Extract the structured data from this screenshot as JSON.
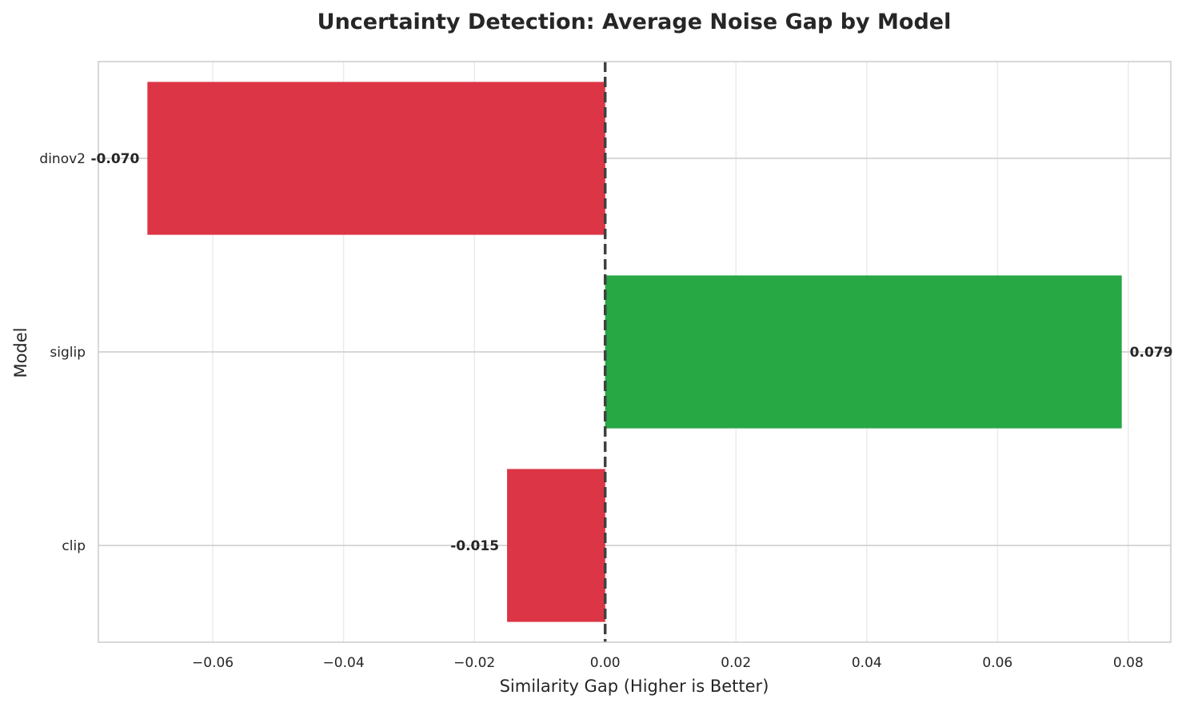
{
  "chart_data": {
    "type": "bar",
    "orientation": "horizontal",
    "title": "Uncertainty Detection: Average Noise Gap by Model",
    "xlabel": "Similarity Gap (Higher is Better)",
    "ylabel": "Model",
    "categories": [
      "dinov2",
      "siglip",
      "clip"
    ],
    "values": [
      -0.07,
      0.079,
      -0.015
    ],
    "value_labels": [
      "-0.070",
      "0.079",
      "-0.015"
    ],
    "bar_colors": [
      "#dc3545",
      "#28a745",
      "#dc3545"
    ],
    "xlim": [
      -0.0775,
      0.0865
    ],
    "xticks": [
      -0.06,
      -0.04,
      -0.02,
      0.0,
      0.02,
      0.04,
      0.06,
      0.08
    ],
    "xtick_labels": [
      "−0.06",
      "−0.04",
      "−0.02",
      "0.00",
      "0.02",
      "0.04",
      "0.06",
      "0.08"
    ],
    "reference_line": {
      "x": 0.0,
      "style": "dashed",
      "color": "#404040"
    },
    "grid": true
  }
}
